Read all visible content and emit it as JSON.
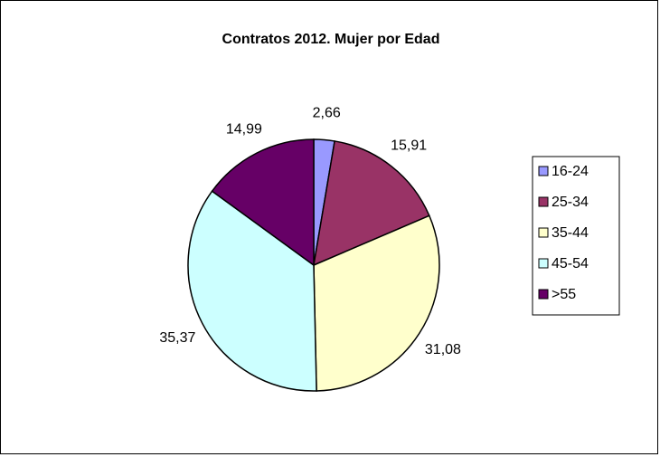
{
  "chart_data": {
    "type": "pie",
    "title": "Contratos 2012. Mujer por Edad",
    "categories": [
      "16-24",
      "25-34",
      "35-44",
      "45-54",
      ">55"
    ],
    "values": [
      2.66,
      15.91,
      31.08,
      35.37,
      14.99
    ],
    "data_labels": [
      "2,66",
      "15,91",
      "31,08",
      "35,37",
      "14,99"
    ],
    "colors": [
      "#9999FF",
      "#993366",
      "#FFFFCC",
      "#CCFFFF",
      "#660066"
    ],
    "legend_position": "right",
    "start_angle": "top",
    "direction": "clockwise"
  }
}
